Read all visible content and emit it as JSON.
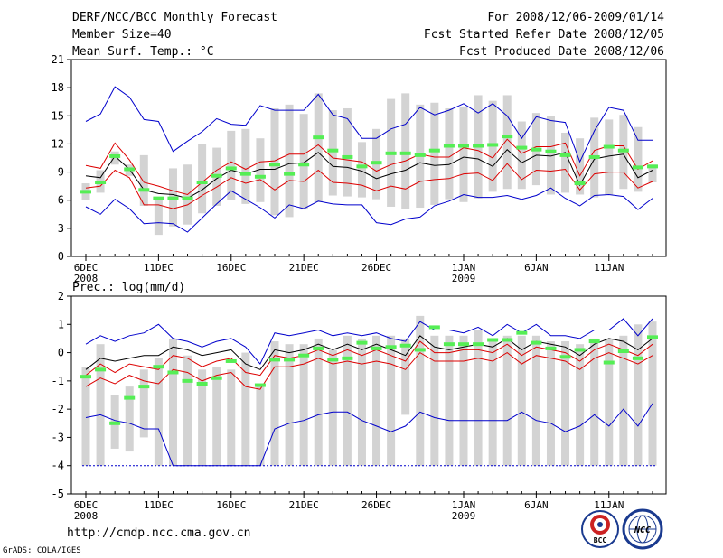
{
  "header": {
    "title": "DERF/NCC/BCC Monthly Forecast",
    "member_size": "Member Size=40",
    "variable": "Mean Surf. Temp.: °C",
    "period": "For 2008/12/06-2009/01/14",
    "fcst_started": "Fcst Started Refer Date 2008/12/05",
    "fcst_produced": "Fcst Produced Date 2008/12/06"
  },
  "footer": {
    "url": "http://cmdp.ncc.cma.gov.cn",
    "credit": "GrADS: COLA/IGES",
    "logo_bcc": "BCC",
    "logo_ncc": "NCC"
  },
  "colors": {
    "box": "#d3d3d3",
    "outer": "#0000cc",
    "inner": "#dd0000",
    "median": "#000000",
    "obs": "#55ee55"
  },
  "chart_data": [
    {
      "type": "box-plume",
      "title": "Mean Surf. Temp.: °C",
      "ylim": [
        0,
        21
      ],
      "yticks": [
        0,
        3,
        6,
        9,
        12,
        15,
        18,
        21
      ],
      "xlim": [
        0,
        39
      ],
      "xticks": [
        {
          "x": 0,
          "label": "6DEC",
          "sub": "2008"
        },
        {
          "x": 5,
          "label": "11DEC",
          "sub": ""
        },
        {
          "x": 10,
          "label": "16DEC",
          "sub": ""
        },
        {
          "x": 15,
          "label": "21DEC",
          "sub": ""
        },
        {
          "x": 20,
          "label": "26DEC",
          "sub": ""
        },
        {
          "x": 26,
          "label": "1JAN",
          "sub": "2009"
        },
        {
          "x": 31,
          "label": "6JAN",
          "sub": ""
        },
        {
          "x": 36,
          "label": "11JAN",
          "sub": ""
        }
      ],
      "box_low": [
        6.0,
        6.8,
        9.8,
        8.6,
        5.4,
        2.3,
        3.2,
        3.4,
        4.6,
        5.4,
        6.0,
        5.6,
        5.8,
        4.4,
        4.2,
        5.0,
        5.8,
        6.5,
        6.4,
        6.3,
        6.1,
        5.3,
        5.1,
        5.2,
        5.5,
        6.1,
        5.8,
        6.2,
        6.9,
        7.2,
        7.2,
        7.6,
        6.6,
        6.8,
        6.6,
        6.3,
        6.6,
        7.2,
        6.9,
        7.9
      ],
      "box_high": [
        7.8,
        9.2,
        11.2,
        9.8,
        10.8,
        6.3,
        9.4,
        9.8,
        12.0,
        11.6,
        13.4,
        13.6,
        12.6,
        15.8,
        16.2,
        15.2,
        17.4,
        15.6,
        15.8,
        12.2,
        13.6,
        16.8,
        17.4,
        16.2,
        16.4,
        15.8,
        16.0,
        17.2,
        16.6,
        17.2,
        14.4,
        15.3,
        15.0,
        13.2,
        12.6,
        14.8,
        14.6,
        15.1,
        13.8,
        9.8
      ],
      "outer_high": [
        14.4,
        15.2,
        18.1,
        17.0,
        14.6,
        14.4,
        11.2,
        12.3,
        13.3,
        14.7,
        14.1,
        14.0,
        16.1,
        15.6,
        15.6,
        15.6,
        17.3,
        15.1,
        14.7,
        12.6,
        12.6,
        13.6,
        14.1,
        15.9,
        15.1,
        15.6,
        16.3,
        15.3,
        16.3,
        15.0,
        12.6,
        14.9,
        14.5,
        14.3,
        10.1,
        13.4,
        15.9,
        15.6,
        12.4,
        12.4
      ],
      "inner_high": [
        9.7,
        9.4,
        12.1,
        10.3,
        7.9,
        7.5,
        7.0,
        6.6,
        7.9,
        9.2,
        10.1,
        9.3,
        10.1,
        10.2,
        10.9,
        10.9,
        11.9,
        10.5,
        10.3,
        10.1,
        9.1,
        9.8,
        10.2,
        10.9,
        10.6,
        10.6,
        11.6,
        11.3,
        10.5,
        12.5,
        11.0,
        11.7,
        11.7,
        12.1,
        8.6,
        11.3,
        11.8,
        11.8,
        9.3,
        10.2
      ],
      "median": [
        8.6,
        8.4,
        10.7,
        9.3,
        7.1,
        6.7,
        6.6,
        6.2,
        7.1,
        8.3,
        9.2,
        8.8,
        9.3,
        9.3,
        9.9,
        10.0,
        11.1,
        9.6,
        9.5,
        9.1,
        8.3,
        8.8,
        9.2,
        10.0,
        9.7,
        9.8,
        10.6,
        10.4,
        9.6,
        11.4,
        10.0,
        10.8,
        10.7,
        11.1,
        7.6,
        10.4,
        10.7,
        10.9,
        8.4,
        9.2
      ],
      "inner_low": [
        7.3,
        7.5,
        9.2,
        8.4,
        5.5,
        5.5,
        5.1,
        5.5,
        6.5,
        7.4,
        8.4,
        7.8,
        8.2,
        7.1,
        8.1,
        8.0,
        9.2,
        7.9,
        7.8,
        7.6,
        7.0,
        7.5,
        7.2,
        8.0,
        8.2,
        8.3,
        8.8,
        8.9,
        8.1,
        9.9,
        8.2,
        9.2,
        9.1,
        9.3,
        7.1,
        8.8,
        9.0,
        9.0,
        7.3,
        8.0
      ],
      "outer_low": [
        5.3,
        4.5,
        6.1,
        5.1,
        3.5,
        3.6,
        3.5,
        2.6,
        4.1,
        5.6,
        7.0,
        6.1,
        5.2,
        4.1,
        5.5,
        5.1,
        5.9,
        5.6,
        5.5,
        5.5,
        3.6,
        3.4,
        4.0,
        4.2,
        5.4,
        5.9,
        6.6,
        6.3,
        6.3,
        6.5,
        6.1,
        6.5,
        7.3,
        6.2,
        5.4,
        6.5,
        6.6,
        6.4,
        5.0,
        6.2
      ],
      "obs": [
        6.9,
        7.9,
        10.7,
        9.3,
        7.1,
        6.2,
        6.2,
        6.2,
        7.9,
        8.6,
        9.4,
        8.8,
        8.5,
        9.8,
        8.8,
        9.8,
        12.7,
        11.3,
        10.6,
        9.6,
        10.0,
        11.0,
        11.0,
        10.8,
        11.3,
        11.8,
        11.8,
        11.8,
        11.9,
        12.8,
        11.6,
        11.4,
        11.2,
        10.8,
        7.8,
        10.6,
        11.7,
        11.3,
        9.5,
        9.6
      ]
    },
    {
      "type": "box-plume",
      "title": "Prec.: log(mm/d)",
      "ylim": [
        -5,
        2
      ],
      "yticks": [
        -5,
        -4,
        -3,
        -2,
        -1,
        0,
        1,
        2
      ],
      "xlim": [
        0,
        39
      ],
      "xticks": [
        {
          "x": 0,
          "label": "6DEC",
          "sub": "2008"
        },
        {
          "x": 5,
          "label": "11DEC",
          "sub": ""
        },
        {
          "x": 10,
          "label": "16DEC",
          "sub": ""
        },
        {
          "x": 15,
          "label": "21DEC",
          "sub": ""
        },
        {
          "x": 20,
          "label": "26DEC",
          "sub": ""
        },
        {
          "x": 26,
          "label": "1JAN",
          "sub": "2009"
        },
        {
          "x": 31,
          "label": "6JAN",
          "sub": ""
        },
        {
          "x": 36,
          "label": "11JAN",
          "sub": ""
        }
      ],
      "box_low": [
        -4,
        -4,
        -3.4,
        -3.5,
        -3.0,
        -4,
        -4,
        -4,
        -4,
        -4,
        -4,
        -4,
        -4,
        -4,
        -4,
        -4,
        -4,
        -4,
        -4,
        -4,
        -4,
        -4,
        -2.2,
        -4,
        -4,
        -4,
        -4,
        -4,
        -4,
        -4,
        -4,
        -4,
        -4,
        -4,
        -4,
        -4,
        -4,
        -4,
        -4,
        -4
      ],
      "box_high": [
        -0.5,
        0.3,
        -1.5,
        -1.2,
        -0.6,
        -0.2,
        0.5,
        -0.1,
        -0.6,
        -0.5,
        -0.6,
        0.0,
        -1.2,
        0.4,
        0.3,
        0.3,
        0.5,
        0.1,
        0.6,
        0.5,
        0.6,
        0.6,
        0.5,
        1.3,
        0.6,
        0.6,
        0.6,
        0.8,
        0.5,
        0.6,
        0.6,
        0.6,
        0.4,
        0.4,
        0.3,
        0.5,
        0.5,
        0.6,
        1.0,
        1.1
      ],
      "outer_high": [
        0.3,
        0.6,
        0.4,
        0.6,
        0.7,
        1.0,
        0.5,
        0.4,
        0.2,
        0.4,
        0.5,
        0.2,
        -0.4,
        0.7,
        0.6,
        0.7,
        0.8,
        0.6,
        0.7,
        0.6,
        0.7,
        0.5,
        0.4,
        1.1,
        0.8,
        0.8,
        0.7,
        0.9,
        0.6,
        1.0,
        0.7,
        1.0,
        0.6,
        0.6,
        0.5,
        0.8,
        0.8,
        1.2,
        0.6,
        1.2
      ],
      "inner_high": [
        -0.8,
        -0.4,
        -0.7,
        -0.4,
        -0.5,
        -0.6,
        -0.1,
        -0.2,
        -0.5,
        -0.3,
        -0.2,
        -0.7,
        -0.8,
        -0.1,
        -0.2,
        -0.1,
        0.1,
        -0.1,
        0.1,
        -0.1,
        0.1,
        -0.1,
        -0.3,
        0.4,
        0.0,
        0.0,
        0.1,
        0.1,
        0.0,
        0.3,
        -0.1,
        0.2,
        0.1,
        0.0,
        -0.3,
        0.1,
        0.3,
        0.1,
        -0.1,
        0.3
      ],
      "median": [
        -0.6,
        -0.2,
        -0.3,
        -0.2,
        -0.1,
        -0.1,
        0.2,
        0.1,
        -0.1,
        0.0,
        0.1,
        -0.4,
        -0.6,
        0.1,
        0.0,
        0.1,
        0.3,
        0.1,
        0.3,
        0.1,
        0.3,
        0.1,
        -0.1,
        0.6,
        0.2,
        0.1,
        0.2,
        0.3,
        0.2,
        0.5,
        0.1,
        0.4,
        0.3,
        0.2,
        -0.1,
        0.3,
        0.5,
        0.4,
        0.1,
        0.5
      ],
      "inner_low": [
        -1.2,
        -0.9,
        -1.1,
        -0.8,
        -1.0,
        -1.1,
        -0.6,
        -0.7,
        -1.0,
        -0.8,
        -0.7,
        -1.2,
        -1.3,
        -0.5,
        -0.5,
        -0.4,
        -0.2,
        -0.4,
        -0.3,
        -0.4,
        -0.3,
        -0.4,
        -0.6,
        0.0,
        -0.3,
        -0.3,
        -0.3,
        -0.2,
        -0.3,
        0.0,
        -0.4,
        -0.1,
        -0.2,
        -0.3,
        -0.6,
        -0.2,
        0.0,
        -0.2,
        -0.4,
        -0.1
      ],
      "outer_low": [
        -2.3,
        -2.2,
        -2.4,
        -2.5,
        -2.7,
        -2.7,
        -4,
        -4,
        -4,
        -4,
        -4,
        -4,
        -4,
        -2.7,
        -2.5,
        -2.4,
        -2.2,
        -2.1,
        -2.1,
        -2.4,
        -2.6,
        -2.8,
        -2.6,
        -2.1,
        -2.3,
        -2.4,
        -2.4,
        -2.4,
        -2.4,
        -2.4,
        -2.1,
        -2.4,
        -2.5,
        -2.8,
        -2.6,
        -2.2,
        -2.6,
        -2.0,
        -2.6,
        -1.8
      ],
      "obs": [
        -0.85,
        -0.6,
        -2.5,
        -1.6,
        -1.2,
        -0.5,
        -0.7,
        -1.0,
        -1.1,
        -0.9,
        -0.3,
        null,
        -1.15,
        -0.25,
        -0.25,
        -0.1,
        0.15,
        -0.25,
        -0.2,
        0.35,
        0.15,
        0.2,
        0.25,
        0.1,
        0.9,
        0.3,
        0.3,
        0.3,
        0.45,
        0.45,
        0.7,
        0.35,
        0.15,
        -0.15,
        0.1,
        0.4,
        -0.35,
        0.05,
        -0.2,
        0.55
      ]
    }
  ]
}
